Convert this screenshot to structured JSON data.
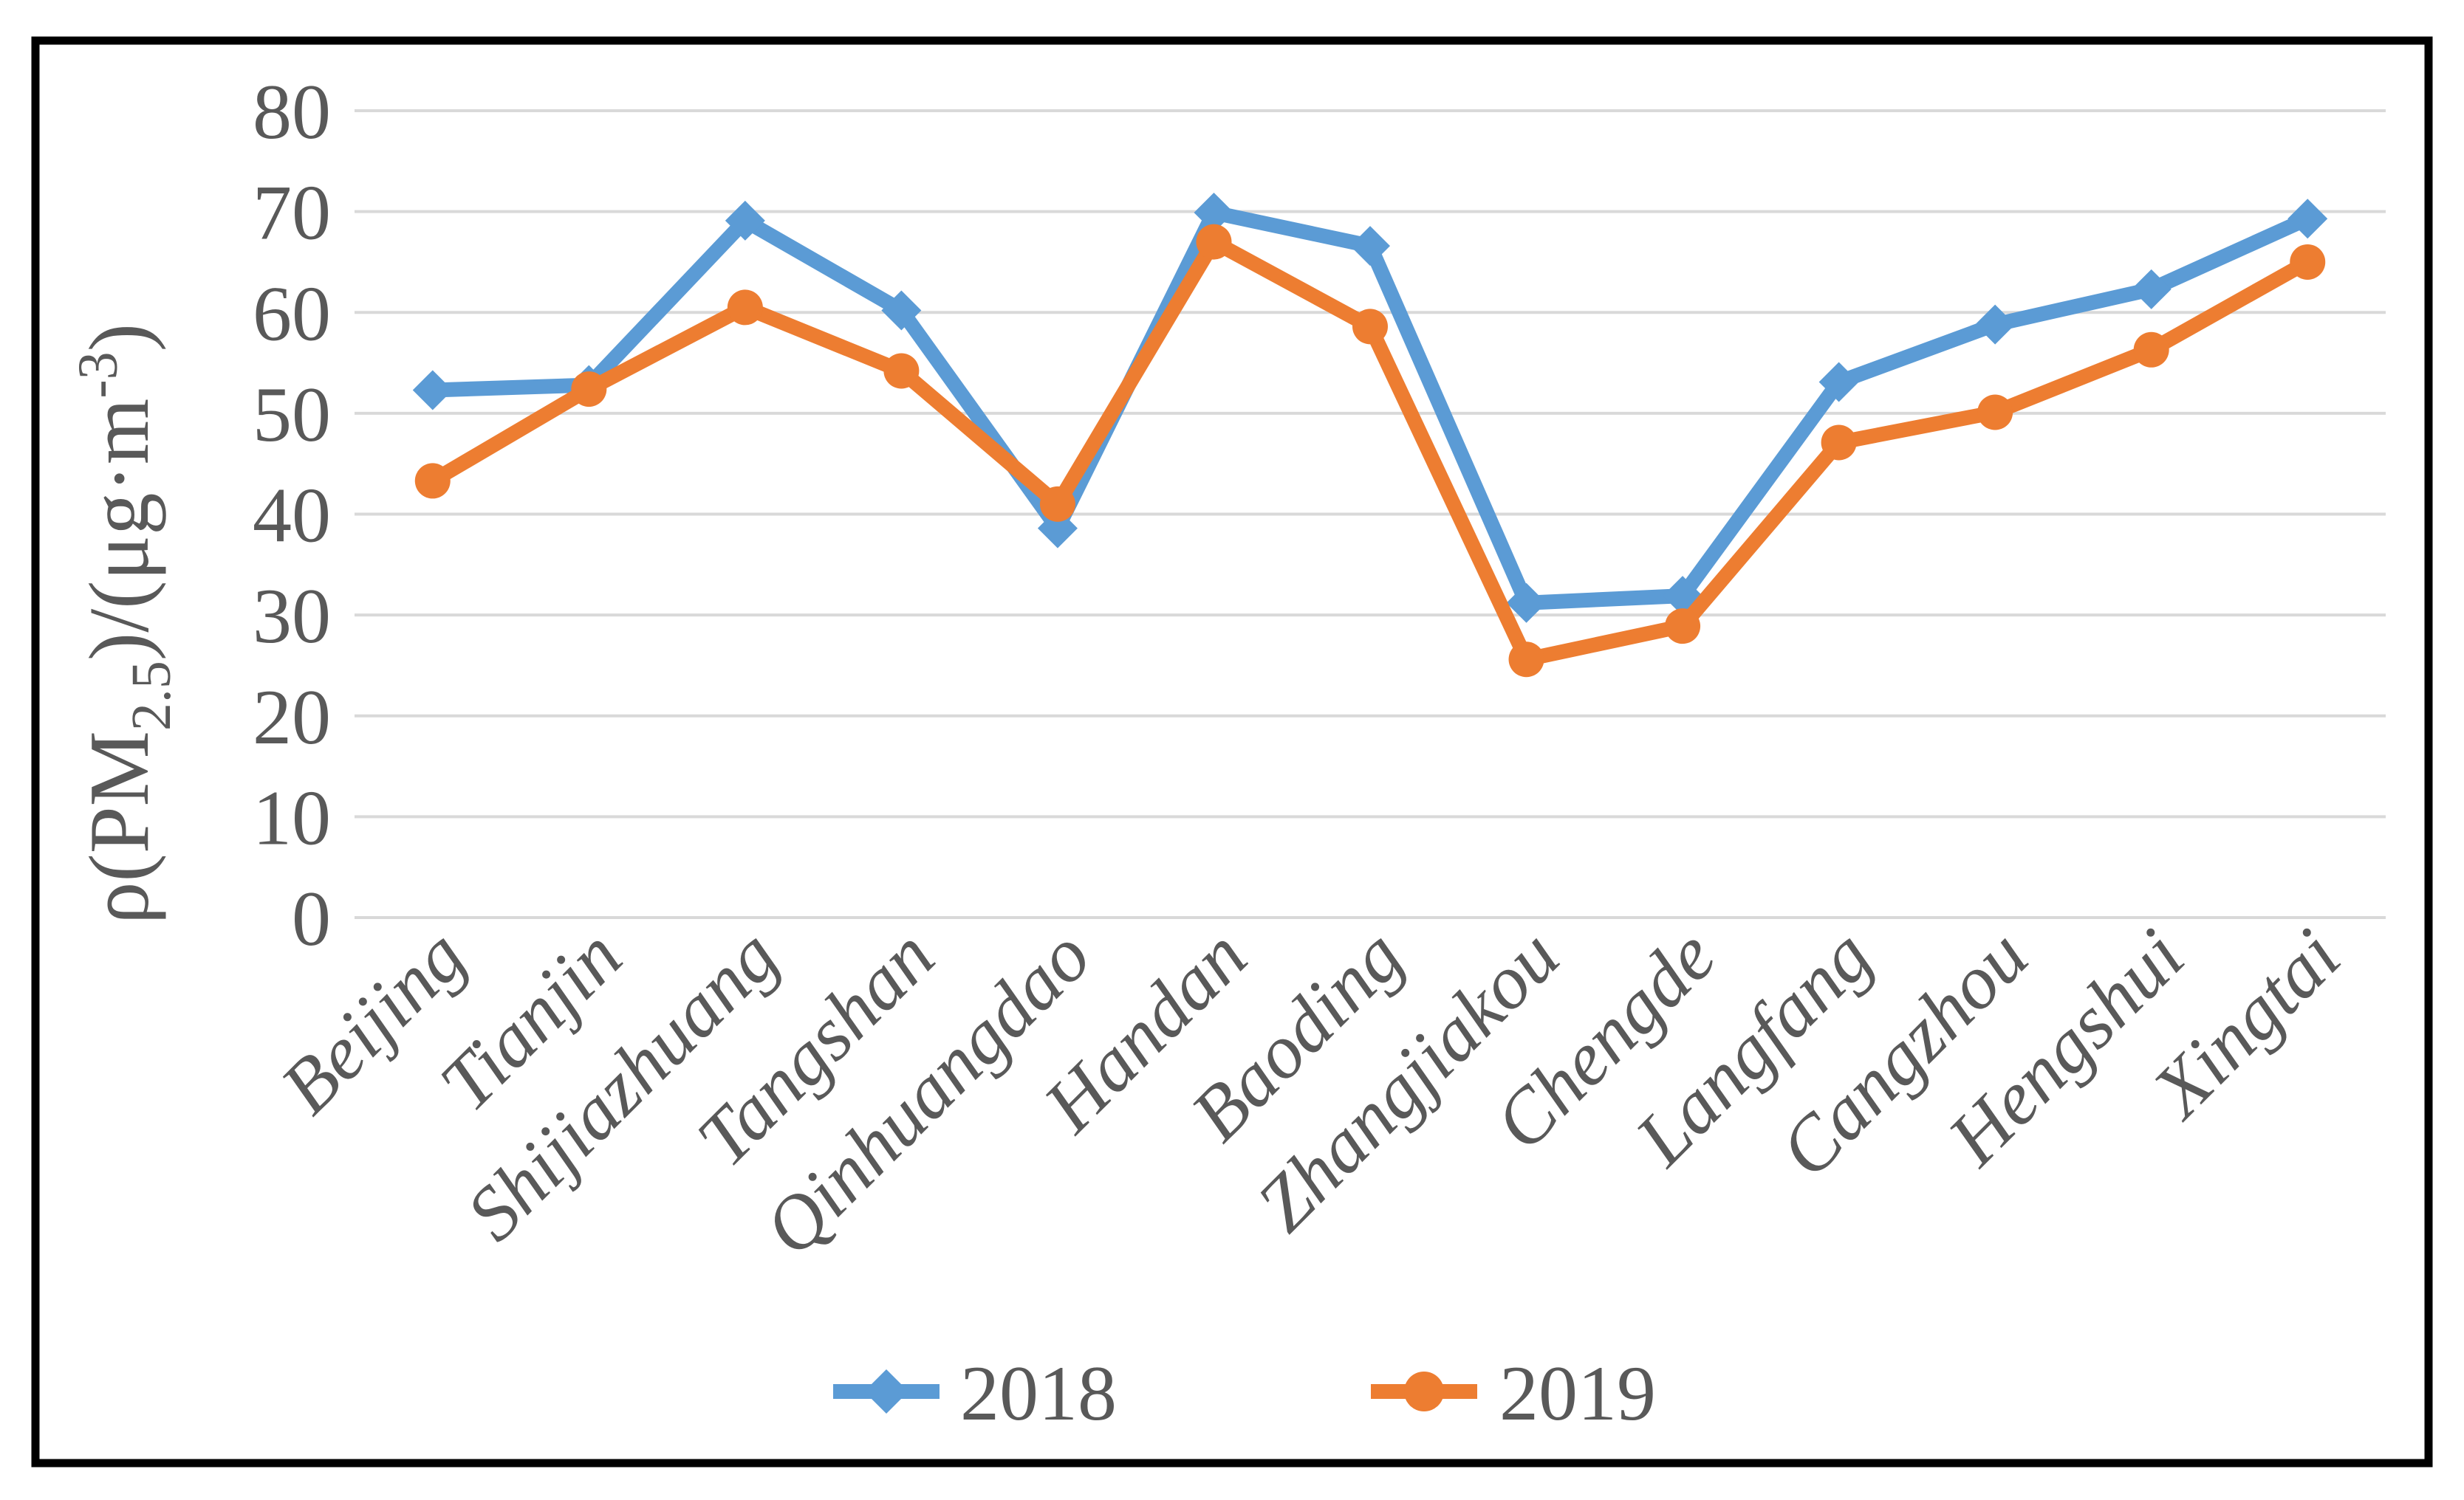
{
  "figure": {
    "background_color": "#ffffff",
    "border_color": "#000000"
  },
  "chart_data": {
    "type": "line",
    "categories": [
      "Beijing",
      "Tianjin",
      "Shijiazhuang",
      "Tangshan",
      "Qinhuangdao",
      "Handan",
      "Baoding",
      "Zhangjiakou",
      "Chengde",
      "Langfang",
      "Cangzhou",
      "Hengshui",
      "Xingtai"
    ],
    "series": [
      {
        "name": "2018",
        "marker": "diamond",
        "color": "#5B9BD5",
        "values": [
          52.3,
          52.8,
          69.1,
          60.2,
          38.6,
          69.9,
          66.6,
          31.2,
          31.9,
          53.1,
          58.8,
          62.3,
          69.3
        ]
      },
      {
        "name": "2019",
        "marker": "circle",
        "color": "#ED7D31",
        "values": [
          43.3,
          52.4,
          60.5,
          54.2,
          41.0,
          67.0,
          58.6,
          25.6,
          28.9,
          47.1,
          50.1,
          56.3,
          65.0
        ]
      }
    ],
    "ylabel": "ρ(PM2.5)/(μg·m-3)",
    "ylabel_parts": {
      "prefix": "ρ(PM",
      "sub": "2.5",
      "mid": ")/(μg·m",
      "sup": "-3",
      "suffix": ")"
    },
    "ylim": [
      0,
      80
    ],
    "ytick_step": 10,
    "yticks": [
      "0",
      "10",
      "20",
      "30",
      "40",
      "50",
      "60",
      "70",
      "80"
    ],
    "grid": true,
    "gridline_color": "#D9D9D9",
    "axis_text_color": "#595959",
    "legend_position": "bottom",
    "legend": [
      "2018",
      "2019"
    ]
  }
}
